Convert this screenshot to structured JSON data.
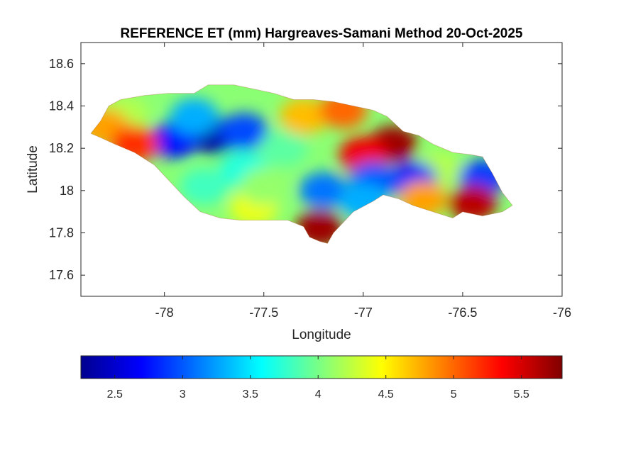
{
  "chart_data": {
    "type": "heatmap",
    "title": "REFERENCE ET (mm) Hargreaves-Samani Method  20-Oct-2025",
    "xlabel": "Longitude",
    "ylabel": "Latitude",
    "xlim": [
      -78.42,
      -76.0
    ],
    "ylim": [
      17.5,
      18.7
    ],
    "x_ticks": [
      -78,
      -77.5,
      -77,
      -76.5,
      -76
    ],
    "x_tick_labels": [
      "-78",
      "-77.5",
      "-77",
      "-76.5",
      "-76"
    ],
    "y_ticks": [
      17.6,
      17.8,
      18.0,
      18.2,
      18.4,
      18.6
    ],
    "y_tick_labels": [
      "17.6",
      "17.8",
      "18",
      "18.2",
      "18.4",
      "18.6"
    ],
    "grid": false,
    "colormap": "jet",
    "colorbar": {
      "orientation": "horizontal",
      "location": "below",
      "range": [
        2.25,
        5.8
      ],
      "ticks": [
        2.5,
        3,
        3.5,
        4,
        4.5,
        5,
        5.5
      ],
      "tick_labels": [
        "2.5",
        "3",
        "3.5",
        "4",
        "4.5",
        "5",
        "5.5"
      ]
    },
    "region": "Jamaica",
    "region_outline_lonlat": [
      [
        -78.37,
        18.27
      ],
      [
        -78.32,
        18.33
      ],
      [
        -78.28,
        18.4
      ],
      [
        -78.22,
        18.43
      ],
      [
        -78.1,
        18.45
      ],
      [
        -77.98,
        18.46
      ],
      [
        -77.85,
        18.46
      ],
      [
        -77.78,
        18.5
      ],
      [
        -77.65,
        18.5
      ],
      [
        -77.55,
        18.48
      ],
      [
        -77.45,
        18.46
      ],
      [
        -77.35,
        18.43
      ],
      [
        -77.25,
        18.43
      ],
      [
        -77.15,
        18.42
      ],
      [
        -77.05,
        18.4
      ],
      [
        -76.95,
        18.38
      ],
      [
        -76.88,
        18.35
      ],
      [
        -76.8,
        18.28
      ],
      [
        -76.72,
        18.26
      ],
      [
        -76.65,
        18.22
      ],
      [
        -76.55,
        18.18
      ],
      [
        -76.46,
        18.17
      ],
      [
        -76.4,
        18.16
      ],
      [
        -76.35,
        18.08
      ],
      [
        -76.3,
        17.99
      ],
      [
        -76.25,
        17.93
      ],
      [
        -76.3,
        17.9
      ],
      [
        -76.4,
        17.88
      ],
      [
        -76.5,
        17.9
      ],
      [
        -76.55,
        17.87
      ],
      [
        -76.65,
        17.9
      ],
      [
        -76.75,
        17.93
      ],
      [
        -76.82,
        17.96
      ],
      [
        -76.9,
        17.98
      ],
      [
        -76.95,
        17.95
      ],
      [
        -77.05,
        17.9
      ],
      [
        -77.1,
        17.85
      ],
      [
        -77.15,
        17.8
      ],
      [
        -77.18,
        17.75
      ],
      [
        -77.22,
        17.76
      ],
      [
        -77.27,
        17.78
      ],
      [
        -77.3,
        17.83
      ],
      [
        -77.38,
        17.86
      ],
      [
        -77.5,
        17.86
      ],
      [
        -77.62,
        17.86
      ],
      [
        -77.72,
        17.87
      ],
      [
        -77.82,
        17.9
      ],
      [
        -77.9,
        17.97
      ],
      [
        -77.98,
        18.05
      ],
      [
        -78.05,
        18.12
      ],
      [
        -78.15,
        18.18
      ],
      [
        -78.25,
        18.22
      ],
      [
        -78.32,
        18.25
      ]
    ],
    "et_zones": [
      {
        "lon": -77.75,
        "lat": 18.26,
        "et": 2.35
      },
      {
        "lon": -77.95,
        "lat": 18.24,
        "et": 2.75
      },
      {
        "lon": -77.6,
        "lat": 18.28,
        "et": 2.95
      },
      {
        "lon": -77.6,
        "lat": 18.1,
        "et": 3.7
      },
      {
        "lon": -77.85,
        "lat": 18.35,
        "et": 3.3
      },
      {
        "lon": -78.2,
        "lat": 18.36,
        "et": 4.2
      },
      {
        "lon": -78.3,
        "lat": 18.3,
        "et": 4.8
      },
      {
        "lon": -78.15,
        "lat": 18.22,
        "et": 5.2
      },
      {
        "lon": -77.4,
        "lat": 18.2,
        "et": 3.9
      },
      {
        "lon": -77.3,
        "lat": 18.35,
        "et": 4.7
      },
      {
        "lon": -77.1,
        "lat": 18.38,
        "et": 5.0
      },
      {
        "lon": -76.85,
        "lat": 18.22,
        "et": 5.7
      },
      {
        "lon": -77.0,
        "lat": 18.17,
        "et": 5.4
      },
      {
        "lon": -76.62,
        "lat": 18.1,
        "et": 4.2
      },
      {
        "lon": -76.75,
        "lat": 18.05,
        "et": 2.8
      },
      {
        "lon": -77.2,
        "lat": 18.0,
        "et": 3.1
      },
      {
        "lon": -76.95,
        "lat": 18.05,
        "et": 3.0
      },
      {
        "lon": -76.4,
        "lat": 18.06,
        "et": 2.9
      },
      {
        "lon": -76.45,
        "lat": 17.94,
        "et": 5.6
      },
      {
        "lon": -76.7,
        "lat": 17.96,
        "et": 4.8
      },
      {
        "lon": -77.22,
        "lat": 17.82,
        "et": 5.7
      },
      {
        "lon": -77.55,
        "lat": 17.92,
        "et": 4.4
      },
      {
        "lon": -77.5,
        "lat": 18.02,
        "et": 4.1
      },
      {
        "lon": -77.8,
        "lat": 18.02,
        "et": 3.8
      },
      {
        "lon": -77.0,
        "lat": 17.95,
        "et": 3.3
      }
    ]
  }
}
